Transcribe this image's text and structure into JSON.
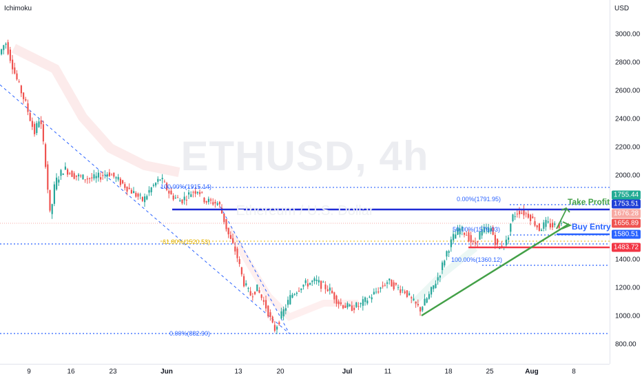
{
  "indicator": "Ichimoku",
  "currency": "USD",
  "watermark": {
    "title": "ETHUSD, 4h",
    "subtitle": "Ethereum / U.S. Dollar"
  },
  "yaxis": {
    "min": 800,
    "max": 3000,
    "ticks": [
      "3000.00",
      "2800.00",
      "2600.00",
      "2400.00",
      "2200.00",
      "2000.00",
      "1400.00",
      "1200.00",
      "1000.00",
      "800.00"
    ]
  },
  "xaxis": {
    "ticks": [
      {
        "label": "9",
        "bold": false
      },
      {
        "label": "16",
        "bold": false
      },
      {
        "label": "23",
        "bold": false
      },
      {
        "label": "Jun",
        "bold": true
      },
      {
        "label": "13",
        "bold": false
      },
      {
        "label": "20",
        "bold": false
      },
      {
        "label": "Jul",
        "bold": true
      },
      {
        "label": "11",
        "bold": false
      },
      {
        "label": "18",
        "bold": false
      },
      {
        "label": "25",
        "bold": false
      },
      {
        "label": "Aug",
        "bold": true
      },
      {
        "label": "8",
        "bold": false
      }
    ]
  },
  "price_labels": [
    {
      "text": "1755.44",
      "value": 1755.44,
      "color": "#22ab94"
    },
    {
      "text": "1753.51",
      "value": 1753.51,
      "color": "#1e3fd7"
    },
    {
      "text": "1676.28",
      "value": 1676.28,
      "color": "#f7a9a3"
    },
    {
      "text": "1656.89",
      "value": 1656.89,
      "color": "#ef5350"
    },
    {
      "text": "1580.51",
      "value": 1580.51,
      "color": "#2962ff"
    },
    {
      "text": "1483.72",
      "value": 1483.72,
      "color": "#f23645"
    }
  ],
  "fib_labels": {
    "f1": "100.00%(1915.14)",
    "f2": "61.80%(1520.53)",
    "f3": "0.00%(882.90)",
    "f4": "0.00%(1791.95)",
    "f5": "50.00%(1576.03)",
    "f6": "100.00%(1360.12)"
  },
  "annotations": {
    "take_profit": "Take Profit",
    "buy_entry": "Buy Entry"
  },
  "colors": {
    "up": "#26a69a",
    "down": "#ef5350",
    "blue_line": "#1e2bd6",
    "red_line": "#f23645",
    "trend": "#43a047",
    "fib": "#2962ff"
  },
  "chart_data": {
    "type": "candlestick",
    "symbol": "ETHUSD",
    "timeframe": "4h",
    "ylim": [
      800,
      3000
    ],
    "path": [
      [
        0,
        2850
      ],
      [
        10,
        2950
      ],
      [
        25,
        2700
      ],
      [
        40,
        2500
      ],
      [
        52,
        2300
      ],
      [
        60,
        2420
      ],
      [
        68,
        2100
      ],
      [
        75,
        1700
      ],
      [
        82,
        1950
      ],
      [
        95,
        2050
      ],
      [
        110,
        2000
      ],
      [
        125,
        1980
      ],
      [
        140,
        1980
      ],
      [
        160,
        2020
      ],
      [
        175,
        1960
      ],
      [
        195,
        1880
      ],
      [
        210,
        1820
      ],
      [
        220,
        1900
      ],
      [
        235,
        1980
      ],
      [
        250,
        1860
      ],
      [
        265,
        1820
      ],
      [
        280,
        1880
      ],
      [
        290,
        1900
      ],
      [
        300,
        1820
      ],
      [
        320,
        1800
      ],
      [
        335,
        1560
      ],
      [
        345,
        1450
      ],
      [
        355,
        1250
      ],
      [
        365,
        1150
      ],
      [
        375,
        1200
      ],
      [
        390,
        1050
      ],
      [
        400,
        900
      ],
      [
        410,
        1000
      ],
      [
        425,
        1150
      ],
      [
        440,
        1220
      ],
      [
        460,
        1250
      ],
      [
        480,
        1190
      ],
      [
        495,
        1090
      ],
      [
        510,
        1060
      ],
      [
        525,
        1080
      ],
      [
        545,
        1160
      ],
      [
        565,
        1250
      ],
      [
        580,
        1200
      ],
      [
        590,
        1180
      ],
      [
        600,
        1110
      ],
      [
        612,
        1050
      ],
      [
        625,
        1150
      ],
      [
        640,
        1300
      ],
      [
        650,
        1450
      ],
      [
        660,
        1560
      ],
      [
        670,
        1620
      ],
      [
        680,
        1580
      ],
      [
        690,
        1500
      ],
      [
        700,
        1600
      ],
      [
        715,
        1620
      ],
      [
        725,
        1480
      ],
      [
        738,
        1530
      ],
      [
        745,
        1700
      ],
      [
        755,
        1750
      ],
      [
        770,
        1720
      ],
      [
        785,
        1620
      ],
      [
        795,
        1660
      ],
      [
        805,
        1640
      ],
      [
        815,
        1650
      ]
    ],
    "levels": {
      "take_profit": 1753.51,
      "resistance_upper": 1755.44,
      "buy_entry": 1580.51,
      "stop_loss": 1483.72,
      "fib_high": 1915.14,
      "fib_618": 1520.53,
      "fib_low": 882.9,
      "swing_high": 1791.95,
      "swing_mid": 1576.03,
      "swing_low": 1360.12,
      "current": 1676.28
    }
  }
}
